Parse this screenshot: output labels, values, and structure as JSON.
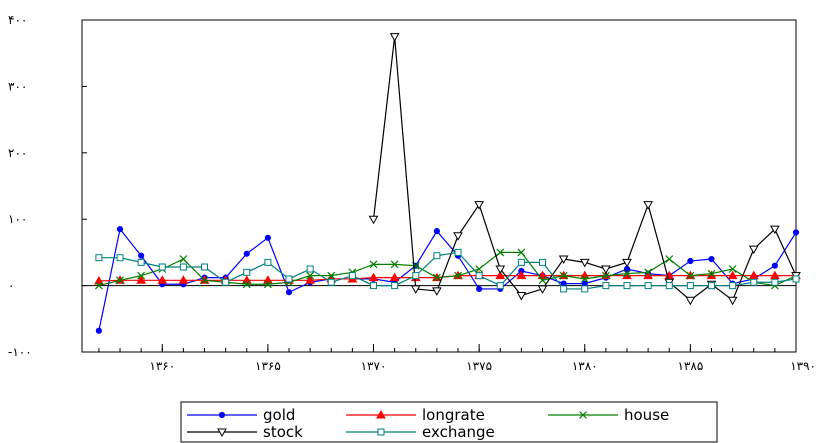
{
  "chart_data": {
    "type": "line",
    "title": "",
    "xlabel": "",
    "ylabel": "",
    "x": [
      1357,
      1358,
      1359,
      1360,
      1361,
      1362,
      1363,
      1364,
      1365,
      1366,
      1367,
      1368,
      1369,
      1370,
      1371,
      1372,
      1373,
      1374,
      1375,
      1376,
      1377,
      1378,
      1379,
      1380,
      1381,
      1382,
      1383,
      1384,
      1385,
      1386,
      1387,
      1388,
      1389,
      1390
    ],
    "xlim": [
      1356.2,
      1390
    ],
    "ylim": [
      -100,
      400
    ],
    "y_ticks": [
      {
        "value": -100,
        "label": "-۱۰۰"
      },
      {
        "value": 0,
        "label": "۰"
      },
      {
        "value": 100,
        "label": "۱۰۰"
      },
      {
        "value": 200,
        "label": "۲۰۰"
      },
      {
        "value": 300,
        "label": "۳۰۰"
      },
      {
        "value": 400,
        "label": "۴۰۰"
      }
    ],
    "x_ticks": [
      {
        "value": 1360,
        "label": "۱۳۶۰"
      },
      {
        "value": 1365,
        "label": "۱۳۶۵"
      },
      {
        "value": 1370,
        "label": "۱۳۷۰"
      },
      {
        "value": 1375,
        "label": "۱۳۷۵"
      },
      {
        "value": 1380,
        "label": "۱۳۸۰"
      },
      {
        "value": 1385,
        "label": "۱۳۸۵"
      },
      {
        "value": 1390,
        "label": "۱۳۹۰"
      }
    ],
    "zero_line": true,
    "grid": false,
    "legend_position": "bottom",
    "series": [
      {
        "name": "gold",
        "color": "#0000ff",
        "marker": "dot",
        "values": [
          -68,
          85,
          45,
          2,
          2,
          12,
          12,
          48,
          72,
          -10,
          5,
          10,
          10,
          10,
          5,
          30,
          82,
          45,
          -5,
          -5,
          22,
          15,
          3,
          3,
          12,
          25,
          18,
          15,
          37,
          40,
          3,
          10,
          30,
          80
        ]
      },
      {
        "name": "longrate",
        "color": "#ff0000",
        "marker": "triangle",
        "values": [
          7,
          8,
          8,
          8,
          8,
          8,
          8,
          8,
          8,
          8,
          8,
          10,
          10,
          12,
          12,
          12,
          12,
          15,
          15,
          15,
          15,
          15,
          15,
          15,
          15,
          15,
          15,
          15,
          15,
          15,
          15,
          15,
          15,
          15
        ]
      },
      {
        "name": "house",
        "color": "#008000",
        "marker": "x",
        "values": [
          0,
          8,
          15,
          25,
          40,
          8,
          5,
          2,
          2,
          5,
          15,
          15,
          20,
          32,
          32,
          30,
          12,
          15,
          25,
          50,
          50,
          8,
          15,
          10,
          15,
          18,
          20,
          40,
          15,
          18,
          25,
          5,
          0,
          15
        ]
      },
      {
        "name": "stock",
        "color": "#000000",
        "marker": "triangle-down",
        "values": [
          null,
          null,
          null,
          null,
          null,
          null,
          null,
          null,
          null,
          null,
          null,
          null,
          null,
          100,
          375,
          -5,
          -8,
          75,
          122,
          25,
          -15,
          -5,
          40,
          35,
          25,
          35,
          122,
          5,
          -22,
          2,
          -22,
          55,
          85,
          15
        ]
      },
      {
        "name": "exchange",
        "color": "#008080",
        "marker": "square",
        "values": [
          42,
          42,
          35,
          28,
          28,
          28,
          5,
          20,
          35,
          10,
          25,
          5,
          15,
          0,
          0,
          15,
          45,
          50,
          15,
          0,
          35,
          35,
          -5,
          -5,
          0,
          0,
          0,
          0,
          0,
          0,
          0,
          5,
          5,
          10
        ]
      }
    ]
  }
}
